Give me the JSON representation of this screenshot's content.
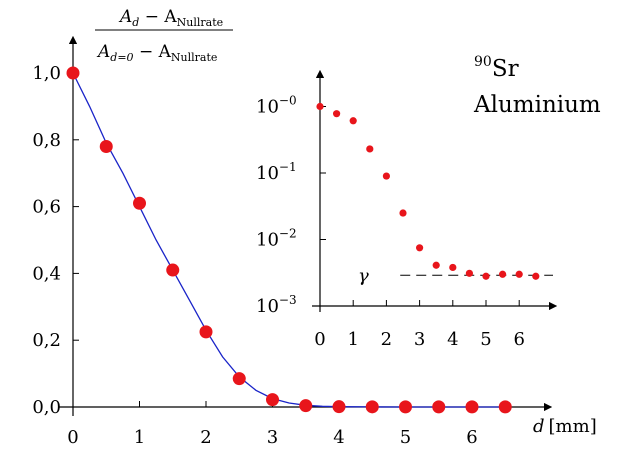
{
  "chart_data": [
    {
      "type": "scatter",
      "ylabel_num_main": "A",
      "ylabel_num_main_sub": "d",
      "ylabel_num_minus": " − A",
      "ylabel_num_sub": "Nullrate",
      "ylabel_den_main": "A",
      "ylabel_den_main_sub": "d=0",
      "ylabel_den_minus": " − A",
      "ylabel_den_sub": "Nullrate",
      "xlabel_var": "d",
      "xlabel_unit": "[mm]",
      "xlim": [
        0,
        7
      ],
      "ylim": [
        0,
        1.08
      ],
      "x_ticks": [
        0,
        1,
        2,
        3,
        4,
        5,
        6
      ],
      "x_tick_labels": [
        "0",
        "1",
        "2",
        "3",
        "4",
        "5",
        "6"
      ],
      "y_ticks": [
        0,
        0.2,
        0.4,
        0.6,
        0.8,
        1.0
      ],
      "y_tick_labels": [
        "0,0",
        "0,2",
        "0,4",
        "0,6",
        "0,8",
        "1,0"
      ],
      "grid": false,
      "series": [
        {
          "kind": "points",
          "color": "#e8151b",
          "x": [
            0,
            0.5,
            1,
            1.5,
            2,
            2.5,
            3,
            3.5,
            4,
            4.5,
            5,
            5.5,
            6,
            6.5
          ],
          "y": [
            1.0,
            0.78,
            0.61,
            0.41,
            0.225,
            0.085,
            0.022,
            0.004,
            0.001,
            0.0005,
            0.0003,
            0.0003,
            0.0003,
            0.0003
          ]
        },
        {
          "kind": "fit-line",
          "color": "#1a24c8",
          "x": [
            0,
            0.25,
            0.5,
            0.75,
            1,
            1.25,
            1.5,
            1.75,
            2,
            2.25,
            2.5,
            2.75,
            3,
            3.25,
            3.5,
            3.75,
            4,
            4.5,
            5,
            5.5,
            6,
            6.5
          ],
          "y": [
            1.0,
            0.9,
            0.79,
            0.7,
            0.6,
            0.5,
            0.41,
            0.32,
            0.23,
            0.15,
            0.09,
            0.05,
            0.025,
            0.012,
            0.005,
            0.002,
            0.001,
            0.0003,
            0.0001,
            0.0,
            0.0,
            0.0
          ]
        }
      ]
    },
    {
      "type": "scatter",
      "scale": "log",
      "xlim": [
        0,
        6.7
      ],
      "ylim_log10": [
        -3,
        0.2
      ],
      "x_ticks": [
        0,
        1,
        2,
        3,
        4,
        5,
        6
      ],
      "x_tick_labels": [
        "0",
        "1",
        "2",
        "3",
        "4",
        "5",
        "6"
      ],
      "y_ticks_log10": [
        0,
        -1,
        -2,
        -3
      ],
      "y_tick_bases": [
        "10",
        "10",
        "10",
        "10"
      ],
      "y_tick_exps": [
        "−0",
        "−1",
        "−2",
        "−3"
      ],
      "grid": false,
      "series": [
        {
          "kind": "points",
          "color": "#e8151b",
          "x": [
            0,
            0.5,
            1,
            1.5,
            2,
            2.5,
            3,
            3.5,
            4,
            4.5,
            5,
            5.5,
            6,
            6.5
          ],
          "y": [
            1.0,
            0.78,
            0.61,
            0.23,
            0.09,
            0.025,
            0.0075,
            0.0041,
            0.0038,
            0.0031,
            0.0028,
            0.003,
            0.003,
            0.0028
          ]
        }
      ],
      "reference_line": {
        "label": "γ",
        "y": 0.0029,
        "x_start": 3.2,
        "style": "dashed"
      }
    }
  ],
  "annotation": {
    "isotope_mass": "90",
    "isotope_symbol": "Sr",
    "material": "Aluminium"
  }
}
